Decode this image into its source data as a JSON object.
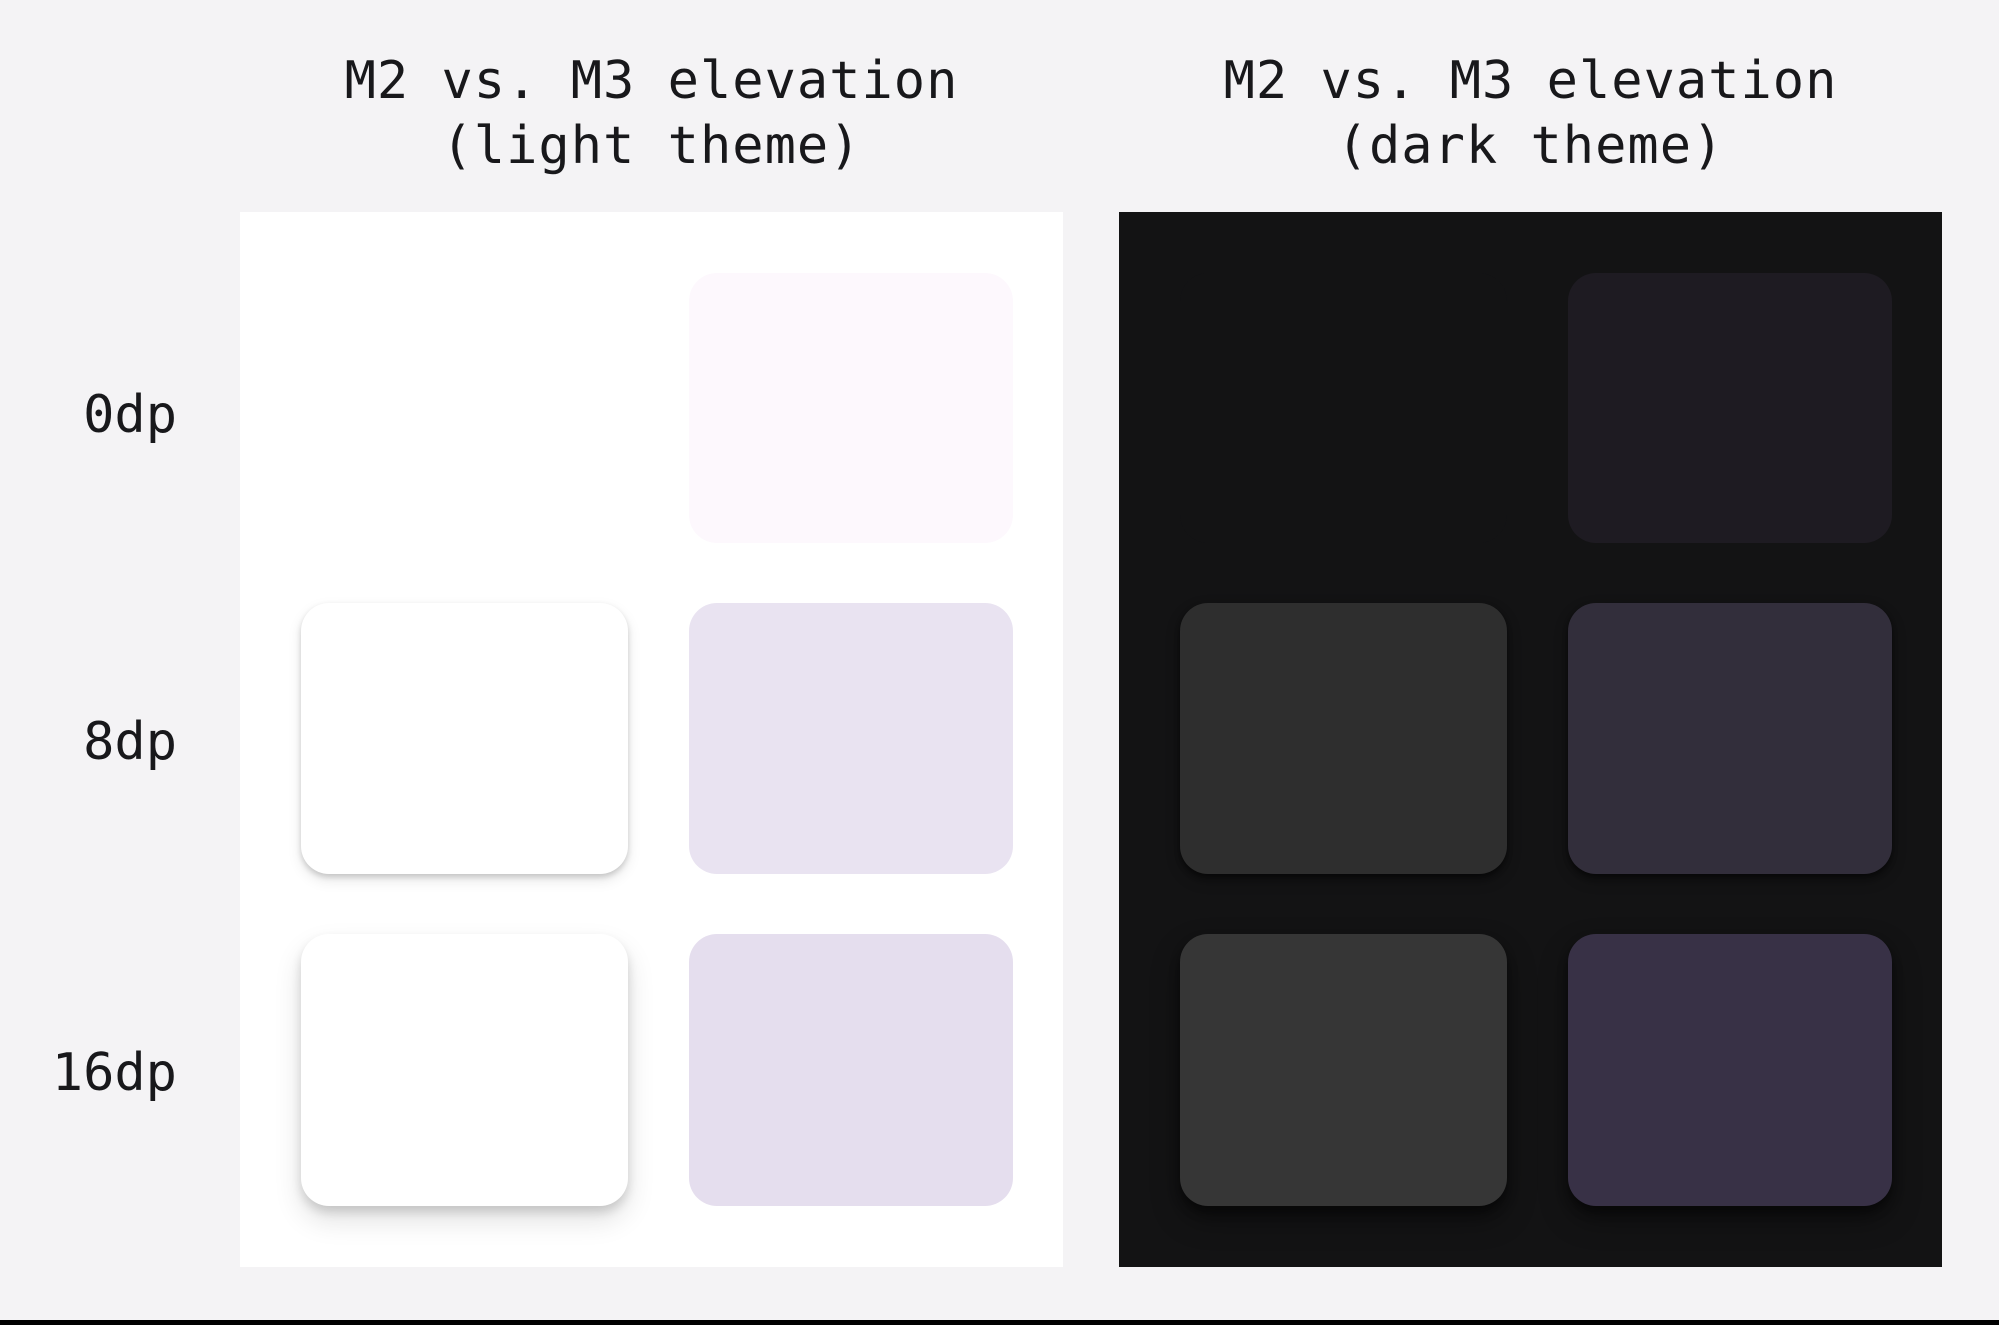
{
  "figure": {
    "light": {
      "title_line1": "M2 vs. M3 elevation",
      "title_line2": "(light theme)"
    },
    "dark": {
      "title_line1": "M2 vs. M3 elevation",
      "title_line2": "(dark theme)"
    },
    "row_labels": [
      "0dp",
      "8dp",
      "16dp"
    ]
  },
  "colors": {
    "page_background": "#f4f3f5",
    "text": "#18181b",
    "bottom_bar": "#000000",
    "light_panel": {
      "background": "#ffffff",
      "m2_0dp": "#ffffff",
      "m2_8dp": "#ffffff",
      "m2_16dp": "#ffffff",
      "m3_0dp": "#fdf8fd",
      "m3_8dp": "#e9e3f1",
      "m3_16dp": "#e5deee"
    },
    "dark_panel": {
      "background": "#131314",
      "m2_0dp": "#131314",
      "m2_8dp": "#2e2e2e",
      "m2_16dp": "#363636",
      "m3_0dp": "#1e1b22",
      "m3_8dp": "#322e3b",
      "m3_16dp": "#383146"
    }
  }
}
